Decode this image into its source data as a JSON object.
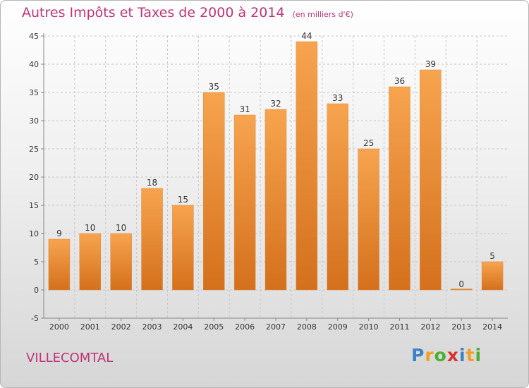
{
  "title": "Autres Impôts et Taxes de 2000 à 2014",
  "subtitle": "(en milliers d'€)",
  "commune": "VILLECOMTAL",
  "logo": {
    "letters": [
      "P",
      "r",
      "o",
      "x",
      "i",
      "t",
      "i"
    ],
    "colors": [
      "#3c82c8",
      "#f0a020",
      "#4caf32",
      "#d83030",
      "#3c82c8",
      "#f0a020",
      "#4caf32"
    ]
  },
  "colors": {
    "bar_light": "#f7a44f",
    "bar_dark": "#d4701c",
    "title": "#c0337a",
    "grid": "#c8c8c8",
    "axis": "#888888"
  },
  "chart_data": {
    "type": "bar",
    "title": "Autres Impôts et Taxes de 2000 à 2014",
    "subtitle": "(en milliers d'€)",
    "xlabel": "",
    "ylabel": "",
    "categories": [
      "2000",
      "2001",
      "2002",
      "2003",
      "2004",
      "2005",
      "2006",
      "2007",
      "2008",
      "2009",
      "2010",
      "2011",
      "2012",
      "2013",
      "2014"
    ],
    "values": [
      9,
      10,
      10,
      18,
      15,
      35,
      31,
      32,
      44,
      33,
      25,
      36,
      39,
      0,
      5
    ],
    "ylim": [
      -5,
      45
    ],
    "yticks": [
      -5,
      0,
      5,
      10,
      15,
      20,
      25,
      30,
      35,
      40,
      45
    ],
    "grid": "horizontal dashed",
    "legend": "none"
  }
}
